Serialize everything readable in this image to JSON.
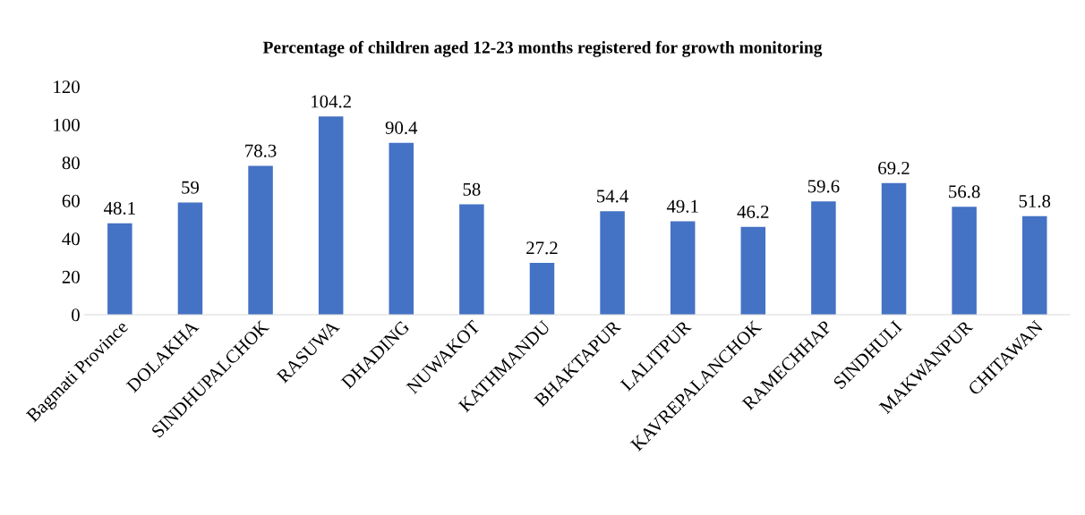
{
  "chart_data": {
    "type": "bar",
    "title": "Percentage of children aged 12-23 months registered for growth monitoring",
    "categories": [
      "Bagmati Province",
      "DOLAKHA",
      "SINDHUPALCHOK",
      "RASUWA",
      "DHADING",
      "NUWAKOT",
      "KATHMANDU",
      "BHAKTAPUR",
      "LALITPUR",
      "KAVREPALANCHOK",
      "RAMECHHAP",
      "SINDHULI",
      "MAKWANPUR",
      "CHITAWAN"
    ],
    "values": [
      48.1,
      59,
      78.3,
      104.2,
      90.4,
      58,
      27.2,
      54.4,
      49.1,
      46.2,
      59.6,
      69.2,
      56.8,
      51.8
    ],
    "color": "#4472c4",
    "ylim": [
      0,
      120
    ],
    "yticks": [
      0,
      20,
      40,
      60,
      80,
      100,
      120
    ],
    "grid": false,
    "legend": false,
    "data_labels": true
  }
}
